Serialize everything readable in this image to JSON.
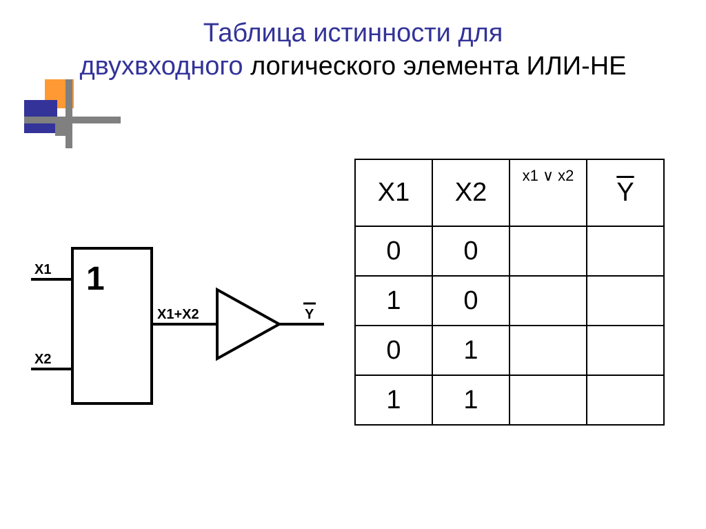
{
  "title": {
    "line1": "Таблица истинности для",
    "line2": "двухвходного логического элемента ИЛИ-НЕ",
    "color_highlight": "#333399",
    "color_plain": "#000000",
    "fontsize": 38
  },
  "decoration": {
    "colors": {
      "orange": "#ff9933",
      "navy": "#333399",
      "gray": "#808080"
    }
  },
  "diagram": {
    "labels": {
      "x1": "X1",
      "x2": "X2",
      "or_symbol": "1",
      "mid": "X1+X2",
      "out": "Y"
    },
    "stroke": "#000000",
    "stroke_width": 4,
    "label_fontsize_small": 20,
    "label_fontsize_big": 44
  },
  "table": {
    "border_color": "#000000",
    "header_fontsize": 38,
    "header_fontsize_small": 22,
    "cell_fontsize": 38,
    "columns": [
      "X1",
      "X2",
      "x1 ∨ x2",
      "Y"
    ],
    "y_has_overline": true,
    "rows": [
      [
        "0",
        "0",
        "",
        ""
      ],
      [
        "1",
        "0",
        "",
        ""
      ],
      [
        "0",
        "1",
        "",
        ""
      ],
      [
        "1",
        "1",
        "",
        ""
      ]
    ]
  }
}
